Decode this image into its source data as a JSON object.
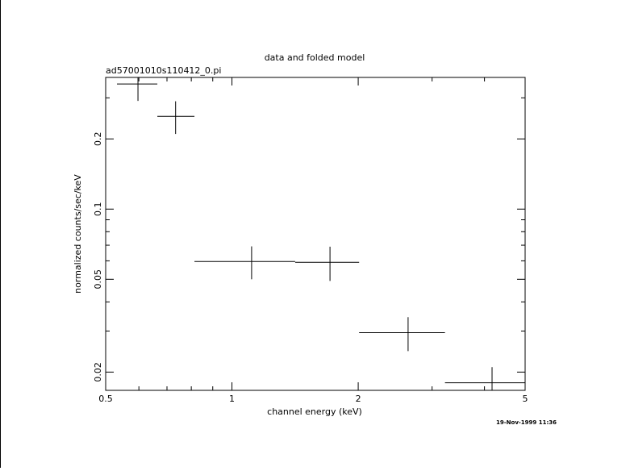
{
  "chart_data": {
    "type": "scatter",
    "title": "data and folded model",
    "subtitle": "ad57001010s110412_0.pi",
    "x_label": "channel energy (keV)",
    "y_label": "normalized counts/sec/keV",
    "annotation": "19-Nov-1999 11:36",
    "log_x": true,
    "log_y": true,
    "color": "#000000",
    "x": [
      0.597,
      0.734,
      1.114,
      1.713,
      2.63,
      4.17
    ],
    "x_low": [
      0.532,
      0.664,
      0.814,
      1.415,
      2.01,
      3.22
    ],
    "x_high": [
      0.664,
      0.814,
      1.415,
      2.01,
      3.22,
      5.0
    ],
    "values": [
      0.344,
      0.25,
      0.0596,
      0.0591,
      0.0295,
      0.018
    ],
    "errors": [
      0.053,
      0.04,
      0.0096,
      0.0099,
      0.0049,
      0.003
    ],
    "xlim": [
      0.5,
      5
    ],
    "ylim": [
      0.0167,
      0.367
    ],
    "xticks": [
      0.5,
      1,
      2,
      5
    ],
    "xminorticks": [
      0.6,
      0.7,
      0.8,
      0.9,
      3,
      4
    ],
    "yticks": [
      0.02,
      0.05,
      0.1,
      0.2
    ],
    "yminorticks": [
      0.03,
      0.04,
      0.06,
      0.07,
      0.08,
      0.09,
      0.3
    ]
  }
}
